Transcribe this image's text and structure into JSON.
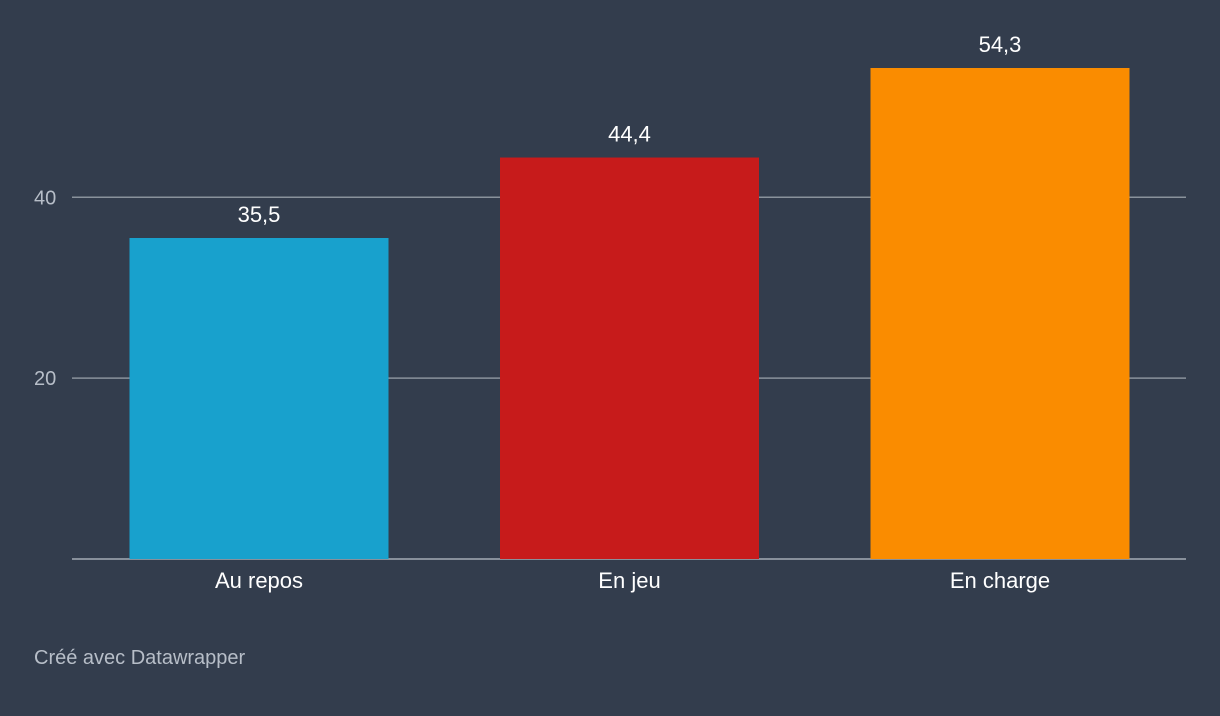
{
  "chart_data": {
    "type": "bar",
    "categories": [
      "Au repos",
      "En jeu",
      "En charge"
    ],
    "values": [
      35.5,
      44.4,
      54.3
    ],
    "value_labels": [
      "35,5",
      "44,4",
      "54,3"
    ],
    "colors": [
      "#18a1cd",
      "#c71b1b",
      "#fa8c00"
    ],
    "yticks": [
      20,
      40
    ],
    "ylim": [
      0,
      54.3
    ],
    "grid": true,
    "title": "",
    "xlabel": "",
    "ylabel": ""
  },
  "footer": {
    "credit": "Créé avec Datawrapper"
  }
}
